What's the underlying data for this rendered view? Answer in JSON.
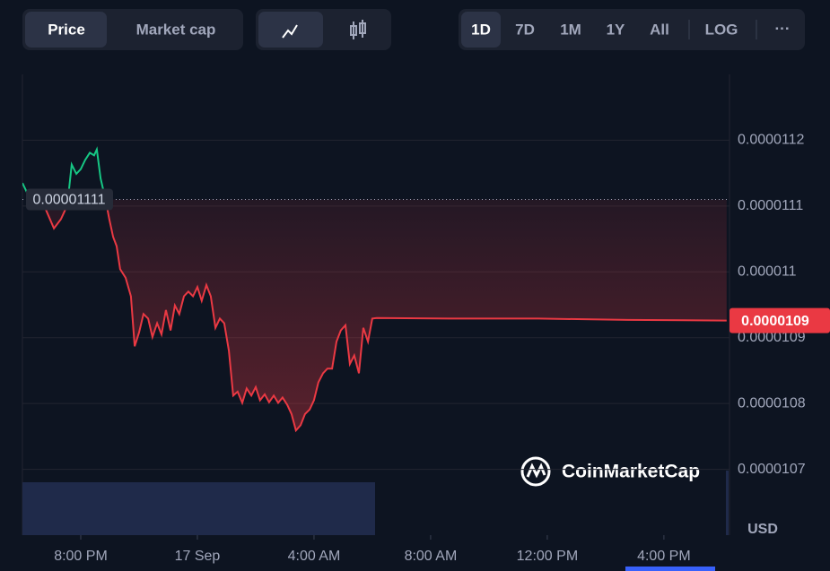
{
  "ui": {
    "metric_tabs": [
      "Price",
      "Market cap"
    ],
    "ranges": [
      "1D",
      "7D",
      "1M",
      "1Y",
      "All"
    ],
    "scale_toggle": "LOG",
    "more": "···",
    "currency": "USD",
    "brand": "CoinMarketCap"
  },
  "chart_data": {
    "type": "line",
    "x": [
      -2.0,
      -1.85,
      -1.54,
      -1.23,
      -0.92,
      -0.68,
      -0.46,
      -0.31,
      -0.15,
      0,
      0.15,
      0.31,
      0.46,
      0.55,
      0.68,
      0.86,
      0.98,
      1.11,
      1.23,
      1.35,
      1.54,
      1.72,
      1.85,
      2.0,
      2.15,
      2.31,
      2.46,
      2.62,
      2.77,
      2.92,
      3.08,
      3.23,
      3.38,
      3.54,
      3.69,
      3.85,
      4.0,
      4.15,
      4.31,
      4.46,
      4.62,
      4.77,
      4.92,
      5.08,
      5.23,
      5.38,
      5.54,
      5.69,
      5.85,
      6.0,
      6.15,
      6.31,
      6.46,
      6.62,
      6.77,
      6.92,
      7.08,
      7.23,
      7.38,
      7.54,
      7.69,
      7.85,
      8.0,
      8.15,
      8.31,
      8.46,
      8.62,
      8.77,
      8.92,
      9.08,
      9.23,
      9.38,
      9.54,
      9.69,
      9.85,
      10.0,
      10.15,
      12.62,
      15.69,
      18.77,
      22.15
    ],
    "series": [
      {
        "color_up": "#16c784",
        "color": "#ea3943",
        "values": [
          1.1135e-05,
          1.1121e-05,
          1.1108e-05,
          1.1098e-05,
          1.1066e-05,
          1.108e-05,
          1.1101e-05,
          1.1163e-05,
          1.1149e-05,
          1.1156e-05,
          1.117e-05,
          1.1181e-05,
          1.1177e-05,
          1.1186e-05,
          1.1142e-05,
          1.1108e-05,
          1.108e-05,
          1.1053e-05,
          1.1039e-05,
          1.1004e-05,
          1.0991e-05,
          1.0963e-05,
          1.0887e-05,
          1.0908e-05,
          1.0936e-05,
          1.0929e-05,
          1.0901e-05,
          1.0922e-05,
          1.0905e-05,
          1.0942e-05,
          1.0911e-05,
          1.0949e-05,
          1.0936e-05,
          1.0963e-05,
          1.097e-05,
          1.0963e-05,
          1.0977e-05,
          1.0956e-05,
          1.098e-05,
          1.0963e-05,
          1.0915e-05,
          1.0929e-05,
          1.0922e-05,
          1.088e-05,
          1.0812e-05,
          1.0818e-05,
          1.0801e-05,
          1.0823e-05,
          1.0812e-05,
          1.0825e-05,
          1.0805e-05,
          1.0814e-05,
          1.0802e-05,
          1.0812e-05,
          1.0801e-05,
          1.0809e-05,
          1.0798e-05,
          1.0784e-05,
          1.0759e-05,
          1.0767e-05,
          1.0784e-05,
          1.0791e-05,
          1.0805e-05,
          1.0832e-05,
          1.0846e-05,
          1.0853e-05,
          1.0853e-05,
          1.0894e-05,
          1.0911e-05,
          1.0919e-05,
          1.086e-05,
          1.0873e-05,
          1.0846e-05,
          1.0915e-05,
          1.0894e-05,
          1.0929e-05,
          1.093e-05,
          1.0929e-05,
          1.0929e-05,
          1.0927e-05,
          1.0926e-05
        ]
      }
    ],
    "baseline": 1.111e-05,
    "last_price": {
      "value": 1.0926e-05,
      "label": "0.0000109"
    },
    "xlim": [
      -2,
      22.25
    ],
    "xticks": [
      {
        "value": 0,
        "label": "8:00 PM"
      },
      {
        "value": 4,
        "label": "17 Sep"
      },
      {
        "value": 8,
        "label": "4:00 AM"
      },
      {
        "value": 12,
        "label": "8:00 AM"
      },
      {
        "value": 16,
        "label": "12:00 PM"
      },
      {
        "value": 20,
        "label": "4:00 PM"
      }
    ],
    "ylim": [
      1.06e-05,
      1.13e-05
    ],
    "yticks": [
      1.07e-05,
      1.08e-05,
      1.09e-05,
      1.1e-05,
      1.11e-05,
      1.12e-05
    ],
    "grid": true
  }
}
